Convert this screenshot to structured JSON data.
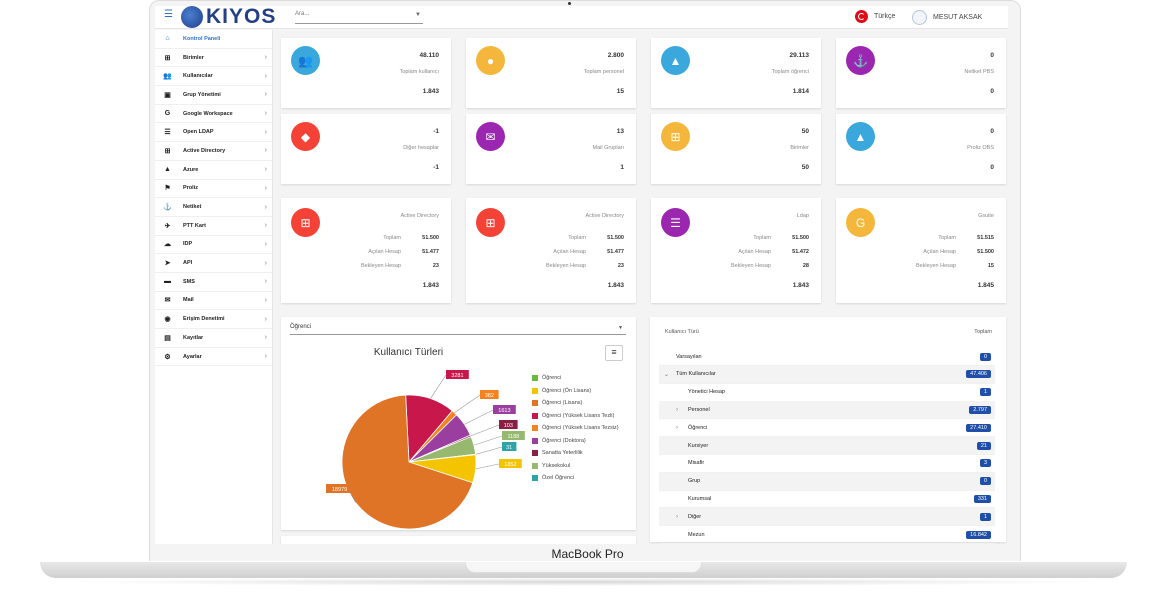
{
  "device": {
    "label": "MacBook Pro"
  },
  "header": {
    "logo_text": "KIYOS",
    "search_placeholder": "Ara...",
    "language": "Türkçe",
    "user_name": "MESUT AKSAK"
  },
  "sidebar": {
    "items": [
      {
        "label": "Kontrol Paneli",
        "icon": "home-icon",
        "active": true
      },
      {
        "label": "Birimler",
        "icon": "sitemap-icon"
      },
      {
        "label": "Kullanıcılar",
        "icon": "users-icon"
      },
      {
        "label": "Grup Yönetimi",
        "icon": "group-icon"
      },
      {
        "label": "Google Workspace",
        "icon": "google-icon"
      },
      {
        "label": "Open LDAP",
        "icon": "server-icon"
      },
      {
        "label": "Active Directory",
        "icon": "windows-icon"
      },
      {
        "label": "Azure",
        "icon": "azure-icon"
      },
      {
        "label": "Proliz",
        "icon": "proliz-icon"
      },
      {
        "label": "Netiket",
        "icon": "netiket-icon"
      },
      {
        "label": "PTT Kart",
        "icon": "bird-icon"
      },
      {
        "label": "IDP",
        "icon": "cloud-icon"
      },
      {
        "label": "API",
        "icon": "api-icon"
      },
      {
        "label": "SMS",
        "icon": "message-icon"
      },
      {
        "label": "Mail",
        "icon": "mail-icon"
      },
      {
        "label": "Erişim Denetimi",
        "icon": "eye-icon"
      },
      {
        "label": "Kayıtlar",
        "icon": "clipboard-icon"
      },
      {
        "label": "Ayarlar",
        "icon": "gear-icon"
      }
    ]
  },
  "stats": [
    {
      "value": "48.110",
      "label": "Toplam kullanıcı",
      "sub": "1.843",
      "color": "#3aa8dc",
      "icon": "users-icon"
    },
    {
      "value": "2.800",
      "label": "Toplam personel",
      "sub": "15",
      "color": "#f5b73b",
      "icon": "person-icon"
    },
    {
      "value": "29.113",
      "label": "Toplam öğrenci",
      "sub": "1.814",
      "color": "#3aa8dc",
      "icon": "graduate-icon"
    },
    {
      "value": "0",
      "label": "Netiket PBS",
      "sub": "0",
      "color": "#9b27b0",
      "icon": "netiket-icon"
    },
    {
      "value": "-1",
      "label": "Diğer hesaplar",
      "sub": "-1",
      "color": "#f44336",
      "icon": "user-secret-icon"
    },
    {
      "value": "13",
      "label": "Mail Grupları",
      "sub": "1",
      "color": "#9b27b0",
      "icon": "mail-group-icon"
    },
    {
      "value": "50",
      "label": "Birimler",
      "sub": "50",
      "color": "#f5b73b",
      "icon": "sitemap-icon"
    },
    {
      "value": "0",
      "label": "Proliz OBS",
      "sub": "0",
      "color": "#3aa8dc",
      "icon": "graduate-icon"
    }
  ],
  "sync_cards": [
    {
      "label": "Active Directory",
      "total_label": "Toplam",
      "total": "51.500",
      "open_label": "Açılan Hesap",
      "open": "51.477",
      "wait_label": "Bekleyen Hesap",
      "wait": "23",
      "sum": "1.843",
      "color": "#f44336",
      "icon": "windows-icon"
    },
    {
      "label": "Active Directory",
      "total_label": "Toplam",
      "total": "51.500",
      "open_label": "Açılan Hesap",
      "open": "51.477",
      "wait_label": "Bekleyen Hesap",
      "wait": "23",
      "sum": "1.843",
      "color": "#f44336",
      "icon": "windows-icon"
    },
    {
      "label": "Ldap",
      "total_label": "Toplam",
      "total": "51.500",
      "open_label": "Açılan Hesap",
      "open": "51.472",
      "wait_label": "Bekleyen Hesap",
      "wait": "28",
      "sum": "1.843",
      "color": "#9b27b0",
      "icon": "server-icon"
    },
    {
      "label": "Gsuite",
      "total_label": "Toplam",
      "total": "51.515",
      "open_label": "Açılan Hesap",
      "open": "51.500",
      "wait_label": "Bekleyen Hesap",
      "wait": "15",
      "sum": "1.845",
      "color": "#f5b73b",
      "icon": "google-icon"
    }
  ],
  "chart_panel": {
    "select_value": "Öğrenci"
  },
  "chart_data": {
    "type": "pie",
    "title": "Kullanıcı Türleri",
    "categories": [
      "Öğrenci",
      "Öğrenci (Ön Lisans)",
      "Öğrenci (Lisans)",
      "Öğrenci (Yüksek Lisans Tezli)",
      "Öğrenci (Yüksek Lisans Tezsiz)",
      "Öğrenci (Doktora)",
      "Sanatta Yeterlilik",
      "Yüksekokul",
      "Özel Öğrenci"
    ],
    "values": [
      0,
      1852,
      18979,
      3281,
      382,
      1613,
      103,
      1188,
      31
    ],
    "colors": [
      "#66bb3f",
      "#f5c400",
      "#e07426",
      "#c8174a",
      "#f5821f",
      "#9a3fa0",
      "#8b1e44",
      "#96b96f",
      "#2ea3a8"
    ]
  },
  "table": {
    "col_type": "Kullanıcı Türü",
    "col_total": "Toplam",
    "rows": [
      {
        "label": "Varsayılan",
        "value": "0",
        "indent": 0,
        "expander": "",
        "shaded": false
      },
      {
        "label": "Tüm Kullanıcılar",
        "value": "47.406",
        "indent": 1,
        "expander": "⌄",
        "shaded": true
      },
      {
        "label": "Yönetici Hesap",
        "value": "1",
        "indent": 2,
        "expander": "",
        "shaded": false
      },
      {
        "label": "Personel",
        "value": "2.797",
        "indent": 2,
        "expander": "›",
        "shaded": true
      },
      {
        "label": "Öğrenci",
        "value": "27.410",
        "indent": 2,
        "expander": "›",
        "shaded": false
      },
      {
        "label": "Kursiyer",
        "value": "21",
        "indent": 2,
        "expander": "",
        "shaded": true
      },
      {
        "label": "Misafir",
        "value": "3",
        "indent": 2,
        "expander": "",
        "shaded": false
      },
      {
        "label": "Grup",
        "value": "0",
        "indent": 2,
        "expander": "",
        "shaded": true
      },
      {
        "label": "Kurumsal",
        "value": "331",
        "indent": 2,
        "expander": "",
        "shaded": false
      },
      {
        "label": "Diğer",
        "value": "1",
        "indent": 2,
        "expander": "›",
        "shaded": true
      },
      {
        "label": "Mezun",
        "value": "16.842",
        "indent": 2,
        "expander": "",
        "shaded": false
      }
    ]
  }
}
